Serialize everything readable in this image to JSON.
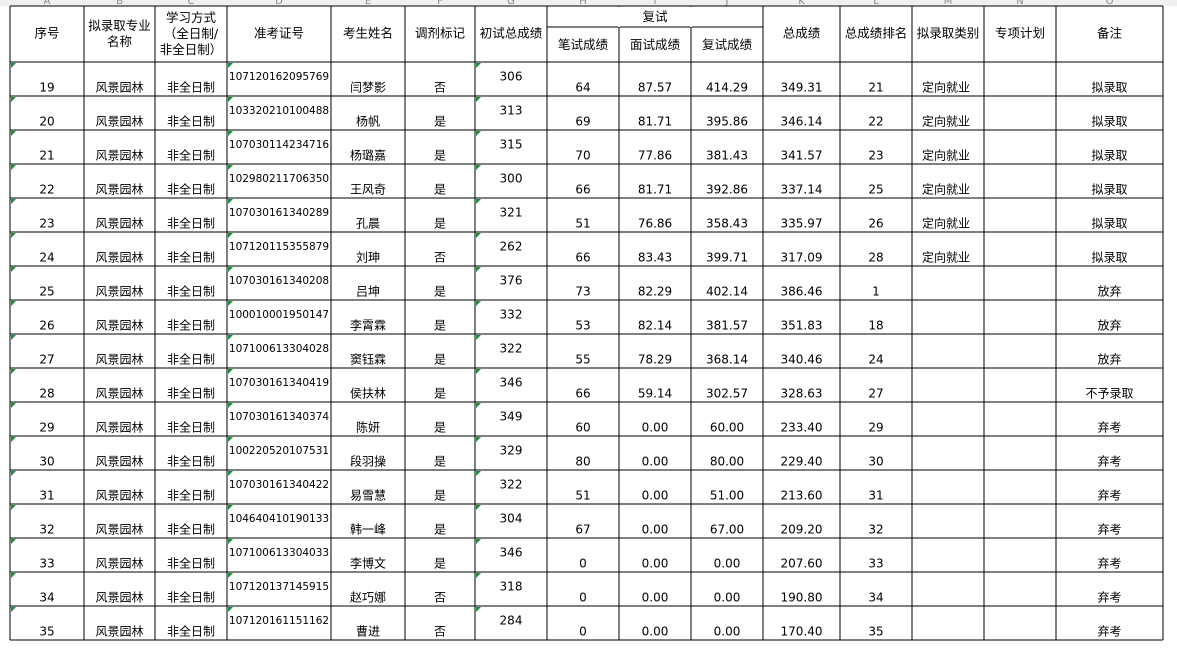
{
  "column_letters": [
    "A",
    "B",
    "C",
    "D",
    "E",
    "F",
    "G",
    "H",
    "I",
    "J",
    "K",
    "L",
    "M",
    "N",
    "O"
  ],
  "table": {
    "headers": [
      "序号",
      "拟录取专业名称",
      "学习方式（全日制/非全日制）",
      "准考证号",
      "考生姓名",
      "调剂标记",
      "初试总成绩",
      "笔试成绩",
      "面试成绩",
      "复试成绩",
      "总成绩",
      "总成绩排名",
      "拟录取类别",
      "专项计划",
      "备注"
    ],
    "group_header": "复试",
    "rows": [
      [
        "19",
        "风景园林",
        "非全日制",
        "107120162095769",
        "闫梦影",
        "否",
        "306",
        "64",
        "87.57",
        "414.29",
        "349.31",
        "21",
        "定向就业",
        null,
        "拟录取"
      ],
      [
        "20",
        "风景园林",
        "非全日制",
        "103320210100488",
        "杨帆",
        "是",
        "313",
        "69",
        "81.71",
        "395.86",
        "346.14",
        "22",
        "定向就业",
        null,
        "拟录取"
      ],
      [
        "21",
        "风景园林",
        "非全日制",
        "107030114234716",
        "杨璐嘉",
        "是",
        "315",
        "70",
        "77.86",
        "381.43",
        "341.57",
        "23",
        "定向就业",
        null,
        "拟录取"
      ],
      [
        "22",
        "风景园林",
        "非全日制",
        "102980211706350",
        "王风奇",
        "是",
        "300",
        "66",
        "81.71",
        "392.86",
        "337.14",
        "25",
        "定向就业",
        null,
        "拟录取"
      ],
      [
        "23",
        "风景园林",
        "非全日制",
        "107030161340289",
        "孔晨",
        "是",
        "321",
        "51",
        "76.86",
        "358.43",
        "335.97",
        "26",
        "定向就业",
        null,
        "拟录取"
      ],
      [
        "24",
        "风景园林",
        "非全日制",
        "107120115355879",
        "刘珅",
        "否",
        "262",
        "66",
        "83.43",
        "399.71",
        "317.09",
        "28",
        "定向就业",
        null,
        "拟录取"
      ],
      [
        "25",
        "风景园林",
        "非全日制",
        "107030161340208",
        "吕坤",
        "是",
        "376",
        "73",
        "82.29",
        "402.14",
        "386.46",
        "1",
        null,
        null,
        "放弃"
      ],
      [
        "26",
        "风景园林",
        "非全日制",
        "100010001950147",
        "李霄霖",
        "是",
        "332",
        "53",
        "82.14",
        "381.57",
        "351.83",
        "18",
        null,
        null,
        "放弃"
      ],
      [
        "27",
        "风景园林",
        "非全日制",
        "107100613304028",
        "窦钰霖",
        "是",
        "322",
        "55",
        "78.29",
        "368.14",
        "340.46",
        "24",
        null,
        null,
        "放弃"
      ],
      [
        "28",
        "风景园林",
        "非全日制",
        "107030161340419",
        "侯扶林",
        "是",
        "346",
        "66",
        "59.14",
        "302.57",
        "328.63",
        "27",
        null,
        null,
        "不予录取"
      ],
      [
        "29",
        "风景园林",
        "非全日制",
        "107030161340374",
        "陈妍",
        "是",
        "349",
        "60",
        "0.00",
        "60.00",
        "233.40",
        "29",
        null,
        null,
        "弃考"
      ],
      [
        "30",
        "风景园林",
        "非全日制",
        "100220520107531",
        "段羽操",
        "是",
        "329",
        "80",
        "0.00",
        "80.00",
        "229.40",
        "30",
        null,
        null,
        "弃考"
      ],
      [
        "31",
        "风景园林",
        "非全日制",
        "107030161340422",
        "易雪慧",
        "是",
        "322",
        "51",
        "0.00",
        "51.00",
        "213.60",
        "31",
        null,
        null,
        "弃考"
      ],
      [
        "32",
        "风景园林",
        "非全日制",
        "104640410190133",
        "韩一峰",
        "是",
        "304",
        "67",
        "0.00",
        "67.00",
        "209.20",
        "32",
        null,
        null,
        "弃考"
      ],
      [
        "33",
        "风景园林",
        "非全日制",
        "107100613304033",
        "李博文",
        "是",
        "346",
        "0",
        "0.00",
        "0.00",
        "207.60",
        "33",
        null,
        null,
        "弃考"
      ],
      [
        "34",
        "风景园林",
        "非全日制",
        "107120137145915",
        "赵巧娜",
        "否",
        "318",
        "0",
        "0.00",
        "0.00",
        "190.80",
        "34",
        null,
        null,
        "弃考"
      ],
      [
        "35",
        "风景园林",
        "非全日制",
        "107120161151162",
        "曹进",
        "否",
        "284",
        "0",
        "0.00",
        "0.00",
        "170.40",
        "35",
        null,
        null,
        "弃考"
      ]
    ]
  }
}
